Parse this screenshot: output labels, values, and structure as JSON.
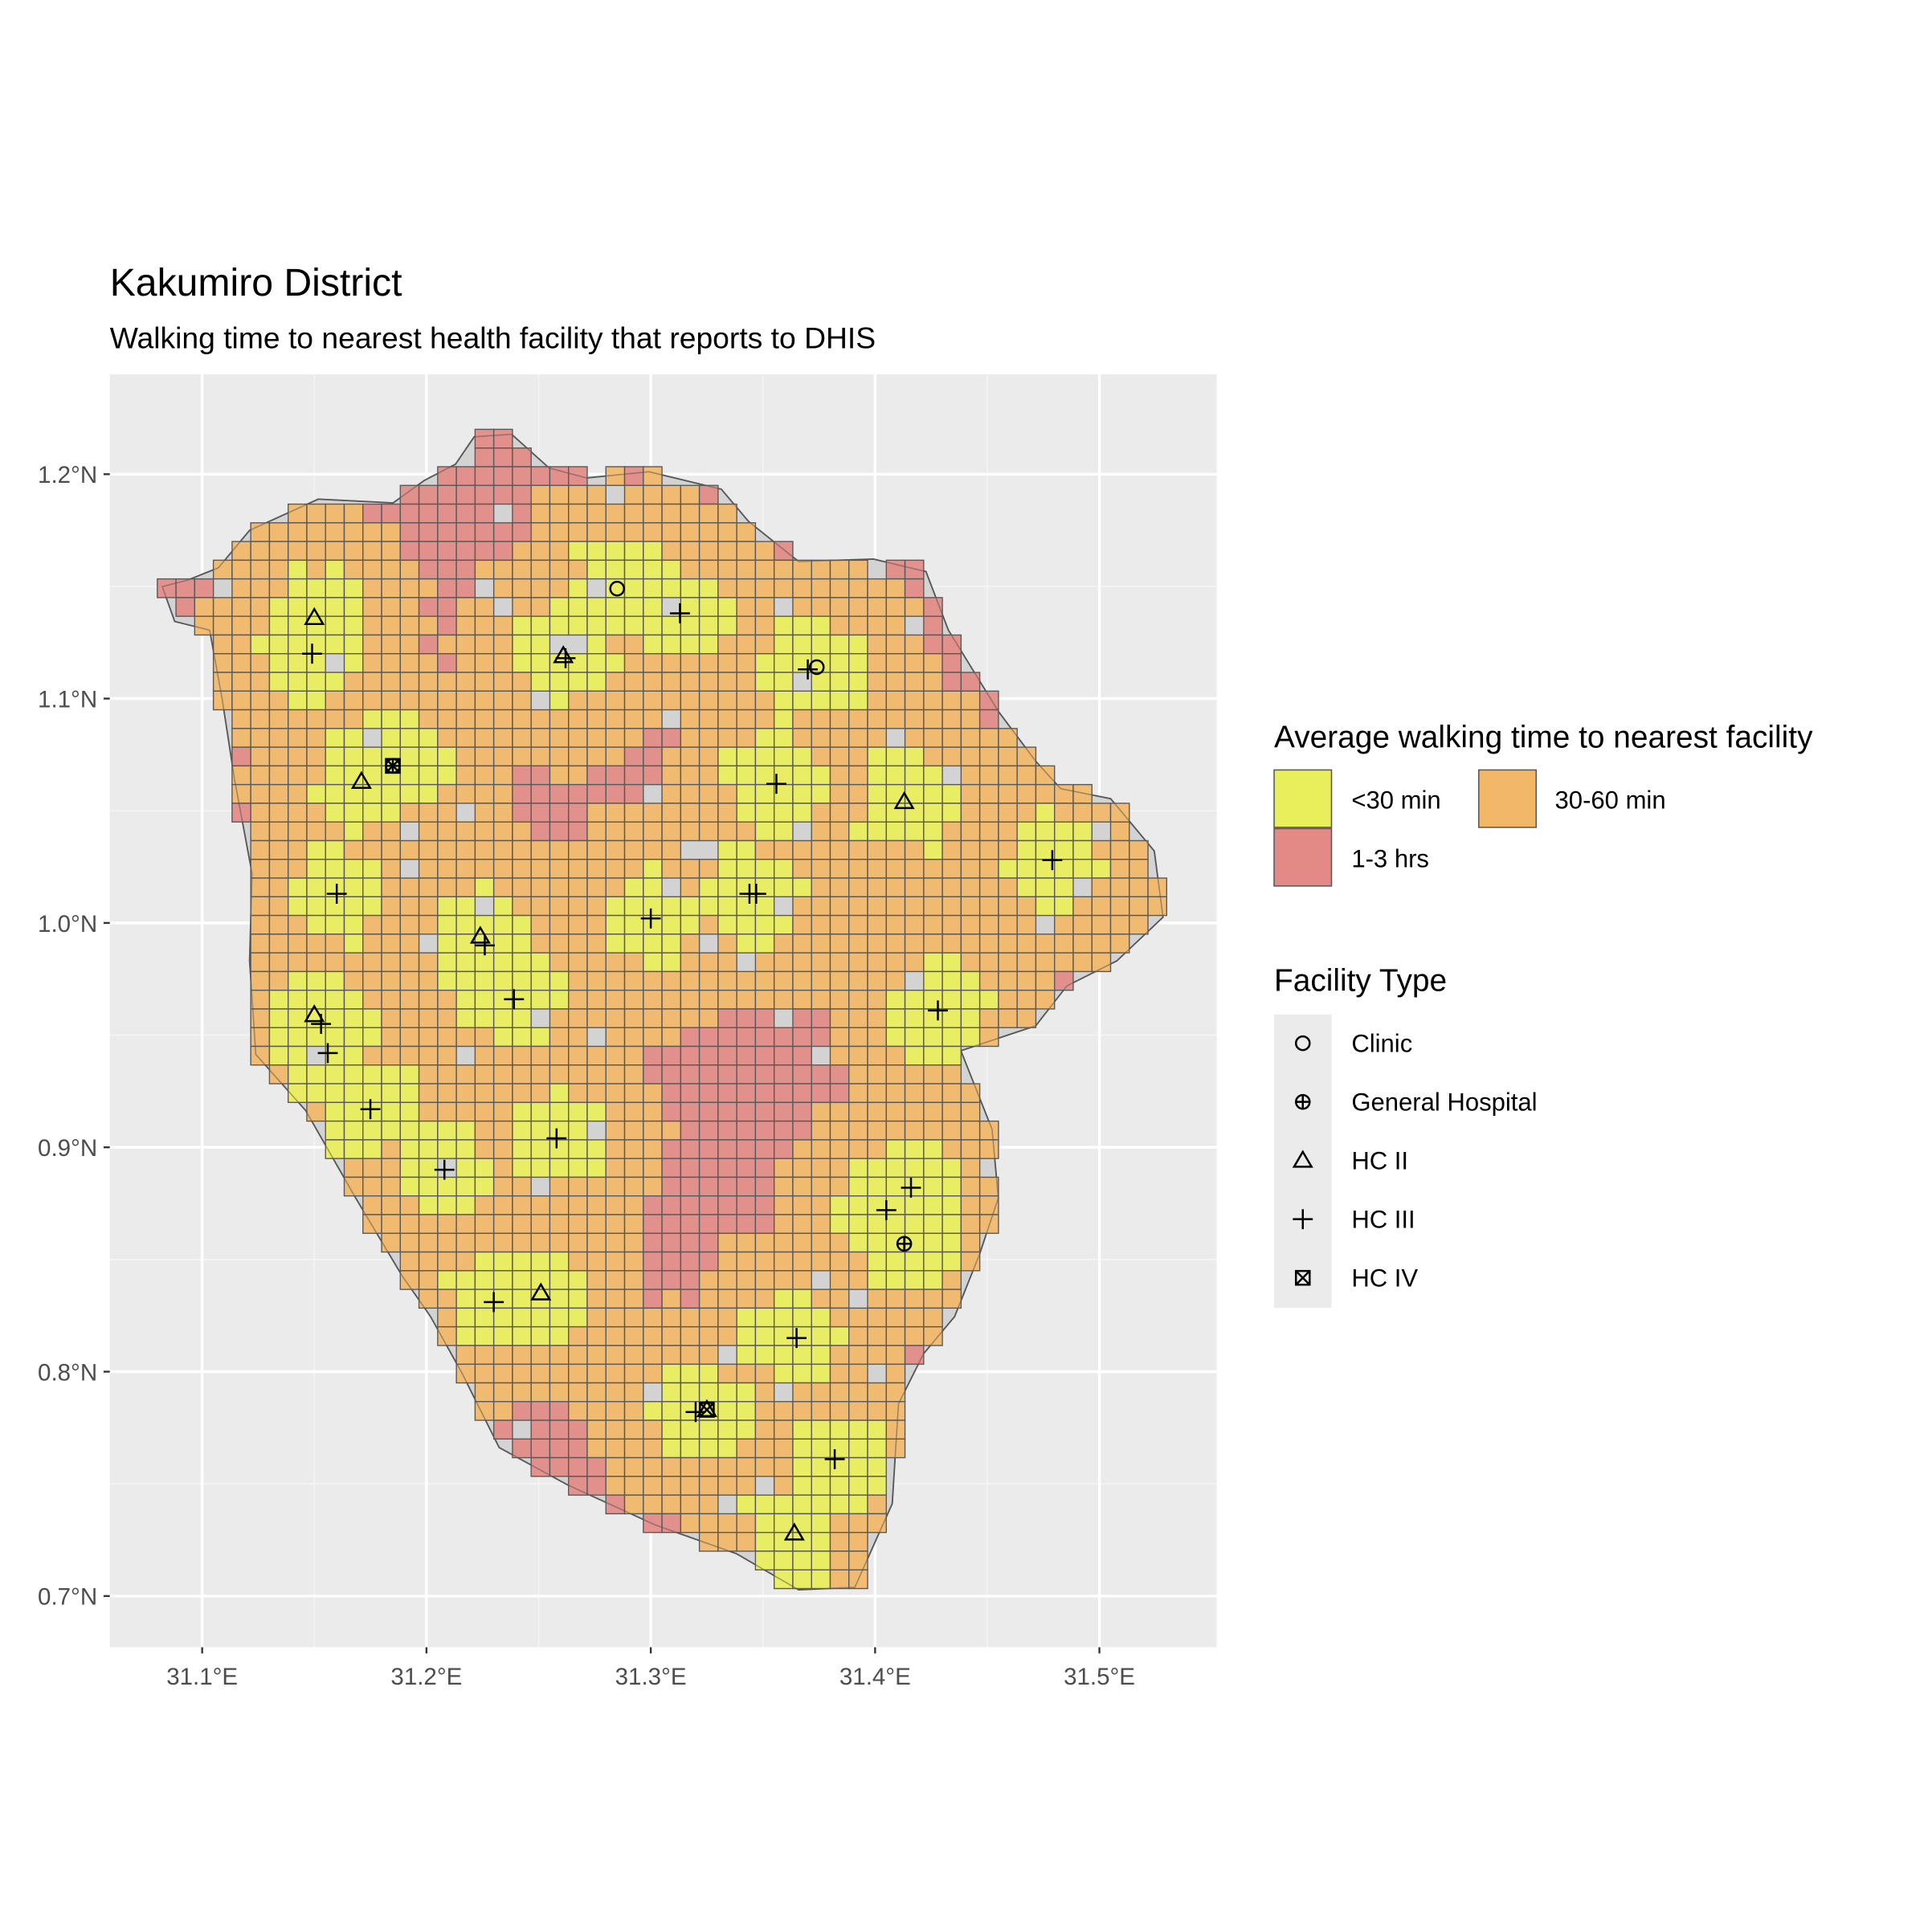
{
  "chart_data": {
    "type": "map",
    "title": "Kakumiro District",
    "subtitle": "Walking time to nearest health facility that reports to DHIS",
    "x_ticks": [
      {
        "value": 31.1,
        "label": "31.1°E"
      },
      {
        "value": 31.2,
        "label": "31.2°E"
      },
      {
        "value": 31.3,
        "label": "31.3°E"
      },
      {
        "value": 31.4,
        "label": "31.4°E"
      },
      {
        "value": 31.5,
        "label": "31.5°E"
      }
    ],
    "y_ticks": [
      {
        "value": 1.2,
        "label": "1.2°N"
      },
      {
        "value": 1.1,
        "label": "1.1°N"
      },
      {
        "value": 1.0,
        "label": "1.0°N"
      },
      {
        "value": 0.9,
        "label": "0.9°N"
      },
      {
        "value": 0.8,
        "label": "0.8°N"
      },
      {
        "value": 0.7,
        "label": "0.7°N"
      }
    ],
    "xlim": [
      31.06,
      31.555
    ],
    "ylim": [
      0.677,
      1.244
    ],
    "fill_legend": {
      "title": "Average walking time to nearest facility",
      "classes": [
        {
          "label": "<30 min",
          "color": "#e9ef5a"
        },
        {
          "label": "30-60 min",
          "color": "#f2b767"
        },
        {
          "label": "1-3 hrs",
          "color": "#e38a86"
        }
      ]
    },
    "shape_legend": {
      "title": "Facility Type",
      "items": [
        {
          "label": "Clinic",
          "shape": "circle"
        },
        {
          "label": "General Hospital",
          "shape": "circle-plus"
        },
        {
          "label": "HC II",
          "shape": "triangle"
        },
        {
          "label": "HC III",
          "shape": "plus"
        },
        {
          "label": "HC IV",
          "shape": "square-x"
        }
      ]
    },
    "facilities": [
      {
        "type": "Clinic",
        "lon": 31.285,
        "lat": 1.149
      },
      {
        "type": "Clinic",
        "lon": 31.374,
        "lat": 1.114
      },
      {
        "type": "General Hospital",
        "lon": 31.185,
        "lat": 1.07
      },
      {
        "type": "General Hospital",
        "lon": 31.413,
        "lat": 0.857
      },
      {
        "type": "HC II",
        "lon": 31.15,
        "lat": 1.136
      },
      {
        "type": "HC II",
        "lon": 31.261,
        "lat": 1.119
      },
      {
        "type": "HC II",
        "lon": 31.171,
        "lat": 1.063
      },
      {
        "type": "HC II",
        "lon": 31.413,
        "lat": 1.054
      },
      {
        "type": "HC II",
        "lon": 31.224,
        "lat": 0.994
      },
      {
        "type": "HC II",
        "lon": 31.15,
        "lat": 0.959
      },
      {
        "type": "HC II",
        "lon": 31.251,
        "lat": 0.835
      },
      {
        "type": "HC II",
        "lon": 31.325,
        "lat": 0.783
      },
      {
        "type": "HC II",
        "lon": 31.364,
        "lat": 0.728
      },
      {
        "type": "HC III",
        "lon": 31.149,
        "lat": 1.12
      },
      {
        "type": "HC III",
        "lon": 31.313,
        "lat": 1.138
      },
      {
        "type": "HC III",
        "lon": 31.262,
        "lat": 1.118
      },
      {
        "type": "HC III",
        "lon": 31.37,
        "lat": 1.113
      },
      {
        "type": "HC III",
        "lon": 31.356,
        "lat": 1.062
      },
      {
        "type": "HC III",
        "lon": 31.479,
        "lat": 1.028
      },
      {
        "type": "HC III",
        "lon": 31.16,
        "lat": 1.013
      },
      {
        "type": "HC III",
        "lon": 31.3,
        "lat": 1.002
      },
      {
        "type": "HC III",
        "lon": 31.344,
        "lat": 1.013
      },
      {
        "type": "HC III",
        "lon": 31.347,
        "lat": 1.013
      },
      {
        "type": "HC III",
        "lon": 31.226,
        "lat": 0.99
      },
      {
        "type": "HC III",
        "lon": 31.239,
        "lat": 0.966
      },
      {
        "type": "HC III",
        "lon": 31.428,
        "lat": 0.961
      },
      {
        "type": "HC III",
        "lon": 31.153,
        "lat": 0.955
      },
      {
        "type": "HC III",
        "lon": 31.156,
        "lat": 0.942
      },
      {
        "type": "HC III",
        "lon": 31.175,
        "lat": 0.917
      },
      {
        "type": "HC III",
        "lon": 31.258,
        "lat": 0.904
      },
      {
        "type": "HC III",
        "lon": 31.208,
        "lat": 0.89
      },
      {
        "type": "HC III",
        "lon": 31.405,
        "lat": 0.872
      },
      {
        "type": "HC III",
        "lon": 31.416,
        "lat": 0.882
      },
      {
        "type": "HC III",
        "lon": 31.23,
        "lat": 0.831
      },
      {
        "type": "HC III",
        "lon": 31.365,
        "lat": 0.815
      },
      {
        "type": "HC III",
        "lon": 31.32,
        "lat": 0.782
      },
      {
        "type": "HC III",
        "lon": 31.382,
        "lat": 0.761
      },
      {
        "type": "HC IV",
        "lon": 31.185,
        "lat": 1.07
      },
      {
        "type": "HC IV",
        "lon": 31.325,
        "lat": 0.783
      }
    ]
  }
}
